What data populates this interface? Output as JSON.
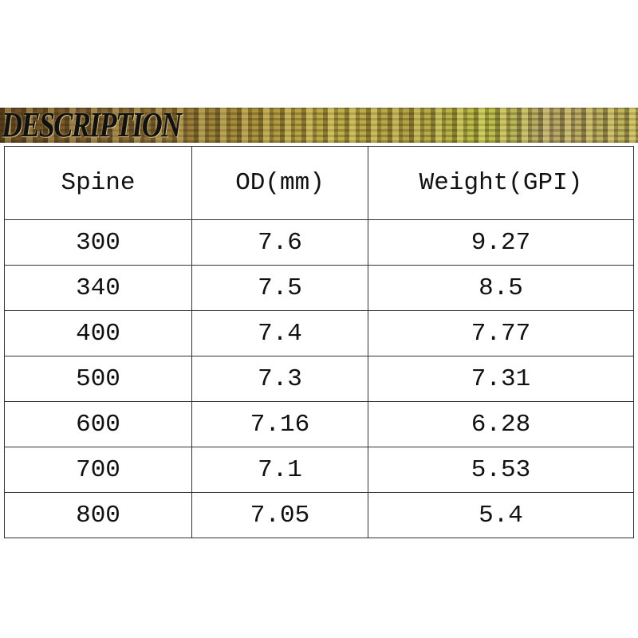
{
  "banner": {
    "title": "DESCRIPTION"
  },
  "table": {
    "headers": [
      "Spine",
      "OD(mm)",
      "Weight(GPI)"
    ],
    "rows": [
      [
        "300",
        "7.6",
        "9.27"
      ],
      [
        "340",
        "7.5",
        "8.5"
      ],
      [
        "400",
        "7.4",
        "7.77"
      ],
      [
        "500",
        "7.3",
        "7.31"
      ],
      [
        "600",
        "7.16",
        "6.28"
      ],
      [
        "700",
        "7.1",
        "5.53"
      ],
      [
        "800",
        "7.05",
        "5.4"
      ]
    ]
  }
}
